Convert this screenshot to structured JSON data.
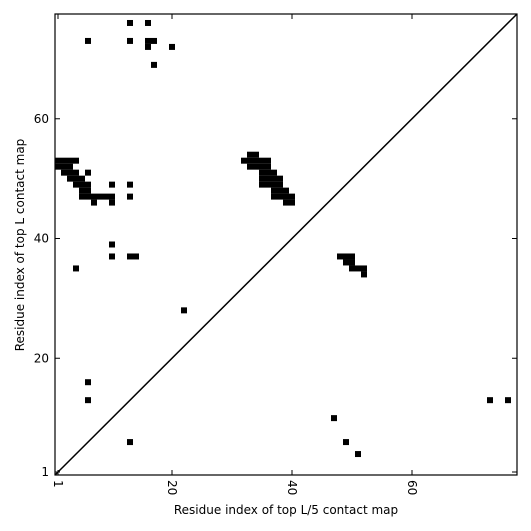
{
  "chart_data": {
    "type": "scatter",
    "xlabel": "Residue index of top L/5 contact map",
    "ylabel": "Residue index of top L contact map",
    "xlim": [
      0.5,
      77.5
    ],
    "ylim": [
      0.5,
      77.5
    ],
    "xticks": [
      1,
      20,
      40,
      60
    ],
    "yticks": [
      1,
      20,
      40,
      60
    ],
    "color": "#000000",
    "diagonal": true,
    "x": [
      13,
      16,
      6,
      13,
      16,
      17,
      16,
      20,
      17,
      1,
      2,
      3,
      4,
      1,
      2,
      3,
      2,
      3,
      4,
      6,
      3,
      4,
      5,
      4,
      5,
      6,
      10,
      13,
      5,
      6,
      5,
      6,
      7,
      8,
      9,
      10,
      13,
      7,
      10,
      10,
      10,
      13,
      14,
      4,
      22,
      33,
      34,
      32,
      33,
      34,
      35,
      36,
      33,
      34,
      35,
      36,
      35,
      36,
      37,
      35,
      36,
      37,
      38,
      35,
      36,
      37,
      38,
      37,
      38,
      39,
      37,
      38,
      39,
      40,
      39,
      40,
      48,
      49,
      50,
      49,
      50,
      50,
      51,
      52,
      52,
      6,
      6,
      13,
      47,
      49,
      51,
      73,
      76
    ],
    "y": [
      76,
      76,
      73,
      73,
      73,
      73,
      72,
      72,
      69,
      53,
      53,
      53,
      53,
      52,
      52,
      52,
      51,
      51,
      51,
      51,
      50,
      50,
      50,
      49,
      49,
      49,
      49,
      49,
      48,
      48,
      47,
      47,
      47,
      47,
      47,
      47,
      47,
      46,
      46,
      39,
      37,
      37,
      37,
      35,
      28,
      54,
      54,
      53,
      53,
      53,
      53,
      53,
      52,
      52,
      52,
      52,
      51,
      51,
      51,
      50,
      50,
      50,
      50,
      49,
      49,
      49,
      49,
      48,
      48,
      48,
      47,
      47,
      47,
      47,
      46,
      46,
      37,
      37,
      37,
      36,
      36,
      35,
      35,
      35,
      34,
      16,
      13,
      6,
      10,
      6,
      4,
      13,
      13
    ]
  }
}
